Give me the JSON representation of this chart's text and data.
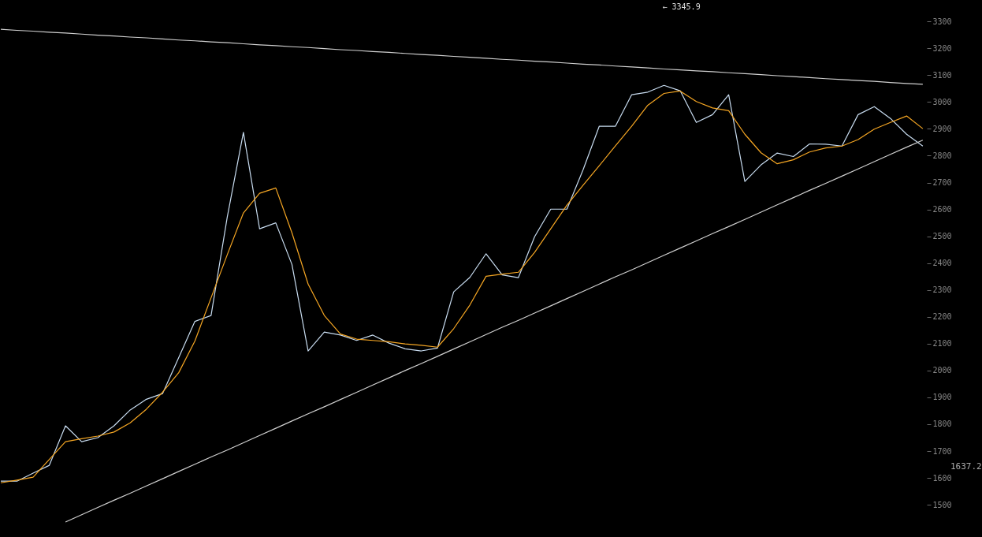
{
  "chart_data": {
    "type": "line",
    "categories": [
      null,
      null,
      null,
      null,
      null,
      null,
      null,
      null,
      null,
      null,
      null,
      null,
      null,
      null,
      null,
      null,
      null,
      null,
      null,
      null,
      null,
      null,
      null,
      null,
      null,
      null,
      null,
      null,
      null,
      null,
      null,
      null,
      null,
      null,
      null,
      null,
      null,
      null,
      null,
      null,
      null,
      null,
      null,
      null,
      null,
      null,
      null,
      null,
      null,
      null,
      null,
      null,
      null,
      null,
      null,
      null,
      null,
      null
    ],
    "ylim": [
      1380,
      3380
    ],
    "yticks": [
      1500,
      1600,
      1700,
      1800,
      1900,
      2000,
      2100,
      2200,
      2300,
      2400,
      2500,
      2600,
      2700,
      2800,
      2900,
      3000,
      3100,
      3200,
      3300
    ],
    "tick_labels": "y",
    "grid": false,
    "marker": "none",
    "line_style": "solid",
    "series": [
      {
        "color": "#c8dcf0",
        "values": [
          1588,
          1588,
          1618,
          1647,
          1794,
          1735,
          1750,
          1794,
          1853,
          1893,
          1914,
          2048,
          2183,
          2205,
          2571,
          2887,
          2528,
          2550,
          2395,
          2073,
          2143,
          2132,
          2112,
          2132,
          2102,
          2081,
          2073,
          2084,
          2293,
          2347,
          2435,
          2356,
          2346,
          2498,
          2601,
          2601,
          2748,
          2910,
          2910,
          3027,
          3037,
          3062,
          3042,
          2924,
          2953,
          3027,
          2704,
          2766,
          2810,
          2797,
          2844,
          2843,
          2836,
          2953,
          2983,
          2939,
          2880,
          2836
        ]
      },
      {
        "color": "#f5a623",
        "values": [
          1582,
          1592,
          1603,
          1669,
          1735,
          1746,
          1756,
          1771,
          1805,
          1856,
          1919,
          1992,
          2110,
          2271,
          2431,
          2587,
          2660,
          2680,
          2513,
          2322,
          2205,
          2136,
          2117,
          2112,
          2107,
          2099,
          2094,
          2087,
          2156,
          2244,
          2351,
          2359,
          2366,
          2440,
          2528,
          2616,
          2690,
          2763,
          2837,
          2910,
          2988,
          3032,
          3041,
          3002,
          2978,
          2968,
          2880,
          2811,
          2770,
          2785,
          2814,
          2829,
          2836,
          2860,
          2899,
          2924,
          2948,
          2901
        ]
      },
      {
        "color": "#d0d0d0",
        "values": [
          3271,
          3267,
          3264,
          3260,
          3257,
          3253,
          3249,
          3246,
          3242,
          3239,
          3235,
          3231,
          3228,
          3224,
          3221,
          3217,
          3213,
          3210,
          3206,
          3203,
          3199,
          3195,
          3192,
          3188,
          3185,
          3181,
          3177,
          3174,
          3170,
          3167,
          3163,
          3159,
          3156,
          3152,
          3149,
          3145,
          3141,
          3138,
          3134,
          3131,
          3127,
          3123,
          3120,
          3116,
          3113,
          3109,
          3106,
          3102,
          3098,
          3095,
          3091,
          3087,
          3084,
          3080,
          3077,
          3073,
          3069,
          3066
        ]
      },
      {
        "color": "#d0d0d0",
        "values": [
          null,
          null,
          null,
          null,
          1436,
          1463,
          1490,
          1517,
          1543,
          1570,
          1597,
          1624,
          1651,
          1678,
          1704,
          1731,
          1758,
          1785,
          1812,
          1839,
          1865,
          1892,
          1919,
          1946,
          1973,
          2000,
          2026,
          2053,
          2080,
          2107,
          2134,
          2161,
          2187,
          2214,
          2241,
          2268,
          2295,
          2322,
          2349,
          2375,
          2402,
          2429,
          2456,
          2483,
          2510,
          2536,
          2563,
          2590,
          2617,
          2644,
          2671,
          2697,
          2724,
          2751,
          2778,
          2805,
          2832,
          2858
        ]
      }
    ],
    "annotations": [
      "← 3345.9",
      "1637.2"
    ]
  }
}
